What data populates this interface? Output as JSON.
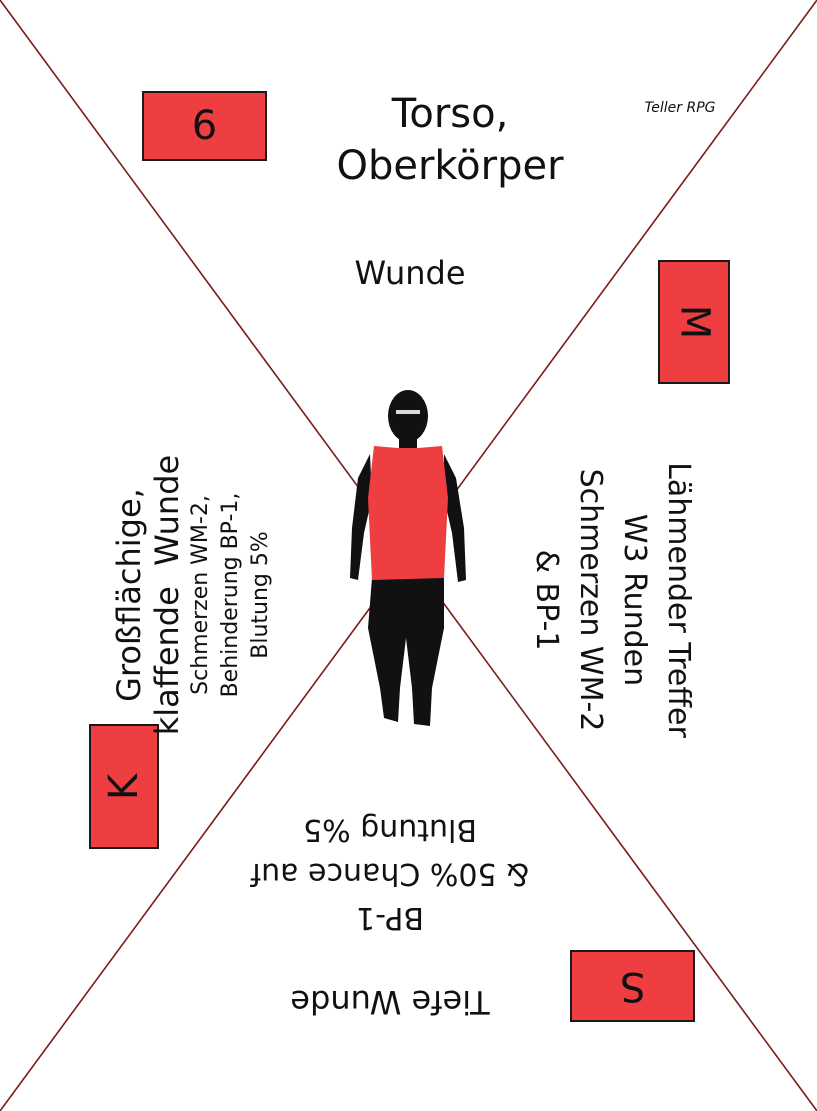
{
  "card": {
    "brand": "Teller RPG",
    "title_line1": "Torso,",
    "title_line2": "Oberkörper",
    "colors": {
      "accent": "#ef3e42",
      "line": "#7a1a1a",
      "figure": "#111111"
    }
  },
  "top": {
    "badge": "6",
    "label": "Wunde"
  },
  "left": {
    "badge": "K",
    "line1": "Großflächige,",
    "line2": "klaffende  Wunde",
    "line3": "Schmerzen WM-2,",
    "line4": "Behinderung BP-1,",
    "line5": "Blutung 5%"
  },
  "right": {
    "badge": "M",
    "line1": "Lähmender Treffer",
    "line2": "W3 Runden",
    "line3": "Schmerzen WM-2",
    "line4": "& BP-1"
  },
  "bottom": {
    "badge": "S",
    "line1": "Tiefe Wunde",
    "line2": "BP-1",
    "line3": "& 50% Chance auf",
    "line4": "Blutung %5"
  },
  "figure": {
    "icon": "person-silhouette-icon"
  }
}
